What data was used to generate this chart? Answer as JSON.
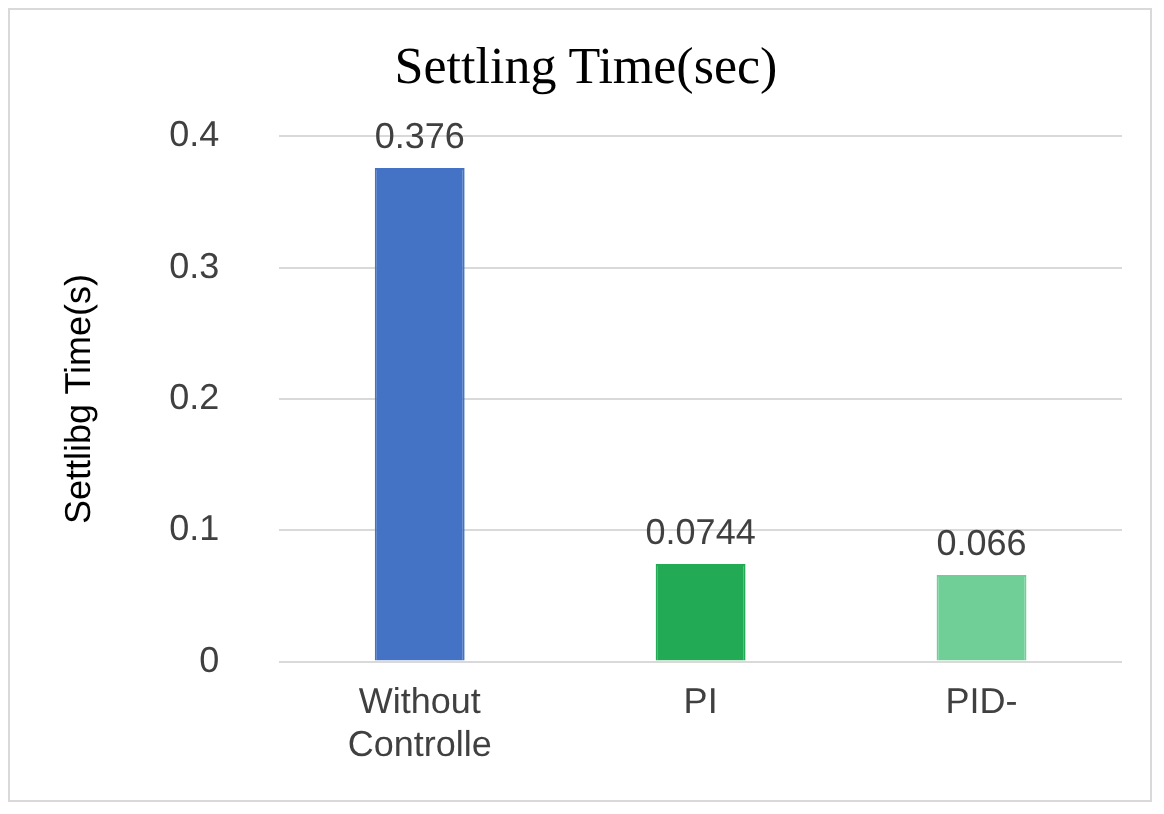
{
  "chart_data": {
    "type": "bar",
    "title": "Settling Time(sec)",
    "ylabel": "Settlibg Time(s)",
    "categories": [
      "Without Controlle",
      "PI",
      "PID-"
    ],
    "values": [
      0.376,
      0.0744,
      0.066
    ],
    "colors": [
      "#4472c4",
      "#22aa55",
      "#6fcf97"
    ],
    "ylim": [
      0,
      0.4
    ],
    "yticks": [
      0,
      0.1,
      0.2,
      0.3,
      0.4
    ],
    "grid": "y",
    "data_labels": true
  }
}
